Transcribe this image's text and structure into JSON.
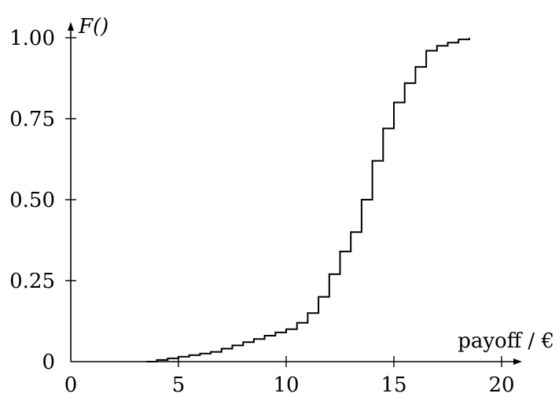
{
  "chart_data": {
    "type": "line",
    "step": true,
    "title": "",
    "xlabel": "payoff / €",
    "ylabel": "F()",
    "xlim": [
      0,
      21
    ],
    "ylim": [
      0,
      1
    ],
    "xticks": [
      0,
      5,
      10,
      15,
      20
    ],
    "xtick_labels": [
      "0",
      "5",
      "10",
      "15",
      "20"
    ],
    "yticks": [
      0,
      0.25,
      0.5,
      0.75,
      1.0
    ],
    "ytick_labels": [
      "0",
      "0.25",
      "0.50",
      "0.75",
      "1.00"
    ],
    "grid": false,
    "legend": "none",
    "series": [
      {
        "x": [
          3.5,
          4.0,
          4.5,
          5.0,
          5.5,
          6.0,
          6.5,
          7.0,
          7.5,
          8.0,
          8.5,
          9.0,
          9.5,
          10.0,
          10.5,
          11.0,
          11.5,
          12.0,
          12.5,
          13.0,
          13.5,
          14.0,
          14.5,
          15.0,
          15.5,
          16.0,
          16.5,
          17.0,
          17.5,
          18.0,
          18.5
        ],
        "y": [
          0.0,
          0.005,
          0.01,
          0.015,
          0.02,
          0.025,
          0.03,
          0.04,
          0.05,
          0.06,
          0.07,
          0.08,
          0.09,
          0.1,
          0.12,
          0.15,
          0.2,
          0.27,
          0.34,
          0.4,
          0.5,
          0.62,
          0.72,
          0.8,
          0.86,
          0.91,
          0.96,
          0.975,
          0.985,
          0.995,
          1.0
        ]
      }
    ]
  }
}
